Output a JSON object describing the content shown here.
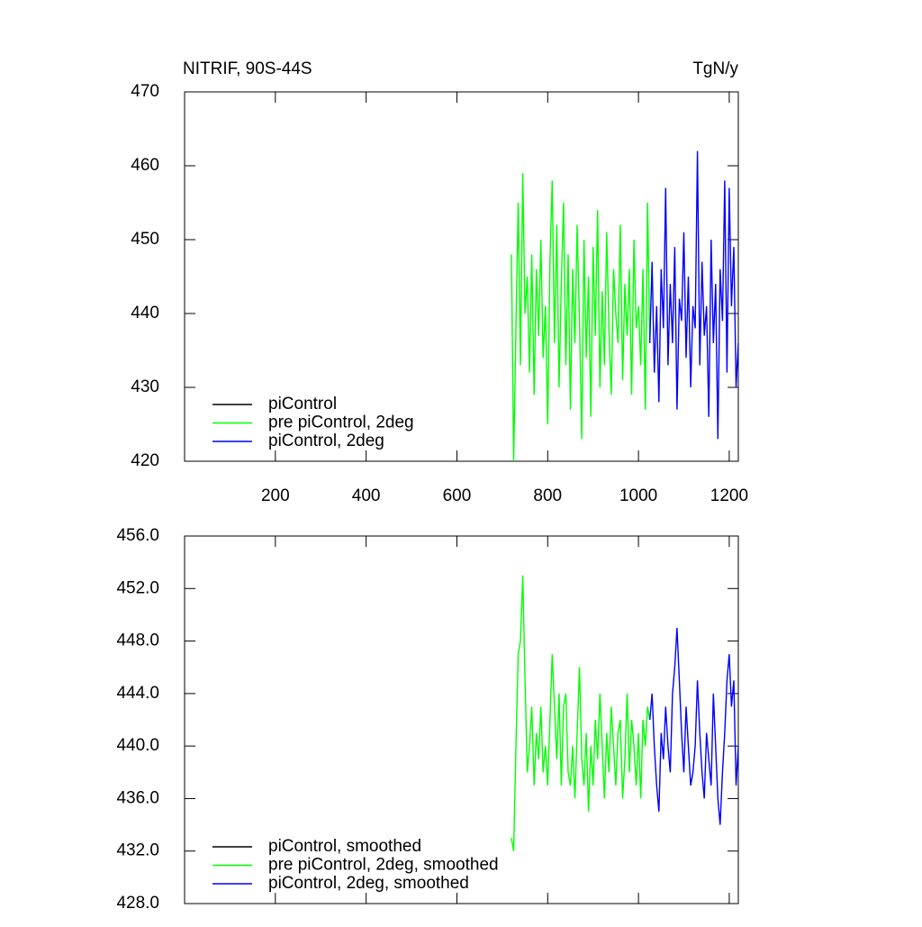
{
  "chart_data": [
    {
      "type": "line",
      "title": "NITRIF, 90S-44S",
      "units": "TgN/y",
      "xlim": [
        0,
        1220
      ],
      "xticks": [
        200,
        400,
        600,
        800,
        1000,
        1200
      ],
      "ylim": [
        420,
        470
      ],
      "yticks": [
        420,
        430,
        440,
        450,
        460,
        470
      ],
      "legend": "lower left",
      "series": [
        {
          "name": "piControl",
          "color": "#000000",
          "x": [],
          "values": []
        },
        {
          "name": "pre piControl, 2deg",
          "color": "#00ff00",
          "x": [
            720,
            725,
            730,
            735,
            740,
            745,
            750,
            755,
            760,
            765,
            770,
            775,
            780,
            785,
            790,
            795,
            800,
            805,
            810,
            815,
            820,
            825,
            830,
            835,
            840,
            845,
            850,
            855,
            860,
            865,
            870,
            875,
            880,
            885,
            890,
            895,
            900,
            905,
            910,
            915,
            920,
            925,
            930,
            935,
            940,
            945,
            950,
            955,
            960,
            965,
            970,
            975,
            980,
            985,
            990,
            995,
            1000,
            1005,
            1010,
            1015,
            1020,
            1025
          ],
          "values": [
            448,
            420,
            438,
            455,
            433,
            459,
            440,
            445,
            432,
            448,
            429,
            446,
            437,
            450,
            434,
            441,
            425,
            447,
            458,
            436,
            452,
            430,
            444,
            455,
            433,
            448,
            427,
            446,
            436,
            452,
            439,
            423,
            450,
            434,
            445,
            426,
            449,
            437,
            454,
            430,
            443,
            433,
            451,
            438,
            429,
            446,
            440,
            436,
            452,
            431,
            444,
            437,
            446,
            429,
            450,
            438,
            441,
            433,
            446,
            427,
            455,
            436
          ]
        },
        {
          "name": "piControl, 2deg",
          "color": "#0000ff",
          "x": [
            1025,
            1030,
            1035,
            1040,
            1045,
            1050,
            1055,
            1060,
            1065,
            1070,
            1075,
            1080,
            1085,
            1090,
            1095,
            1100,
            1105,
            1110,
            1115,
            1120,
            1125,
            1130,
            1135,
            1140,
            1145,
            1150,
            1155,
            1160,
            1165,
            1170,
            1175,
            1180,
            1185,
            1190,
            1195,
            1200,
            1205,
            1210,
            1215,
            1220
          ],
          "values": [
            436,
            447,
            432,
            441,
            428,
            446,
            438,
            457,
            433,
            444,
            436,
            449,
            427,
            442,
            439,
            451,
            434,
            445,
            430,
            441,
            438,
            462,
            433,
            447,
            437,
            441,
            426,
            450,
            436,
            444,
            423,
            446,
            439,
            458,
            432,
            457,
            441,
            449,
            430,
            436
          ]
        }
      ]
    },
    {
      "type": "line",
      "xlim": [
        0,
        1220
      ],
      "xticks": [
        200,
        400,
        600,
        800,
        1000,
        1200
      ],
      "ylim": [
        428,
        456
      ],
      "yticks": [
        {
          "value": 428,
          "label": "428.0"
        },
        {
          "value": 432,
          "label": "432.0"
        },
        {
          "value": 436,
          "label": "436.0"
        },
        {
          "value": 440,
          "label": "440.0"
        },
        {
          "value": 444,
          "label": "444.0"
        },
        {
          "value": 448,
          "label": "448.0"
        },
        {
          "value": 452,
          "label": "452.0"
        },
        {
          "value": 456,
          "label": "456.0"
        }
      ],
      "legend": "lower left",
      "series": [
        {
          "name": "piControl, smoothed",
          "color": "#000000",
          "x": [],
          "values": []
        },
        {
          "name": "pre piControl, 2deg, smoothed",
          "color": "#00ff00",
          "x": [
            720,
            725,
            730,
            735,
            740,
            745,
            750,
            755,
            760,
            765,
            770,
            775,
            780,
            785,
            790,
            795,
            800,
            805,
            810,
            815,
            820,
            825,
            830,
            835,
            840,
            845,
            850,
            855,
            860,
            865,
            870,
            875,
            880,
            885,
            890,
            895,
            900,
            905,
            910,
            915,
            920,
            925,
            930,
            935,
            940,
            945,
            950,
            955,
            960,
            965,
            970,
            975,
            980,
            985,
            990,
            995,
            1000,
            1005,
            1010,
            1015,
            1020,
            1025
          ],
          "values": [
            433,
            432,
            440,
            447,
            448,
            453,
            445,
            438,
            440,
            443,
            437,
            441,
            439,
            443,
            438,
            440,
            437,
            442,
            447,
            443,
            439,
            444,
            437,
            443,
            444,
            438,
            437,
            440,
            436,
            441,
            446,
            439,
            437,
            441,
            435,
            440,
            437,
            442,
            439,
            444,
            440,
            436,
            441,
            438,
            443,
            440,
            437,
            441,
            442,
            436,
            439,
            444,
            438,
            442,
            440,
            437,
            441,
            436,
            442,
            440,
            443,
            442
          ]
        },
        {
          "name": "piControl, 2deg, smoothed",
          "color": "#0000ff",
          "x": [
            1025,
            1030,
            1035,
            1040,
            1045,
            1050,
            1055,
            1060,
            1065,
            1070,
            1075,
            1080,
            1085,
            1090,
            1095,
            1100,
            1105,
            1110,
            1115,
            1120,
            1125,
            1130,
            1135,
            1140,
            1145,
            1150,
            1155,
            1160,
            1165,
            1170,
            1175,
            1180,
            1185,
            1190,
            1195,
            1200,
            1205,
            1210,
            1215,
            1220
          ],
          "values": [
            442,
            444,
            440,
            437,
            435,
            441,
            439,
            443,
            440,
            438,
            444,
            446,
            449,
            445,
            441,
            438,
            443,
            440,
            437,
            438,
            440,
            445,
            441,
            438,
            436,
            441,
            439,
            437,
            444,
            440,
            436,
            434,
            438,
            441,
            445,
            447,
            443,
            445,
            437,
            440
          ]
        }
      ]
    }
  ]
}
